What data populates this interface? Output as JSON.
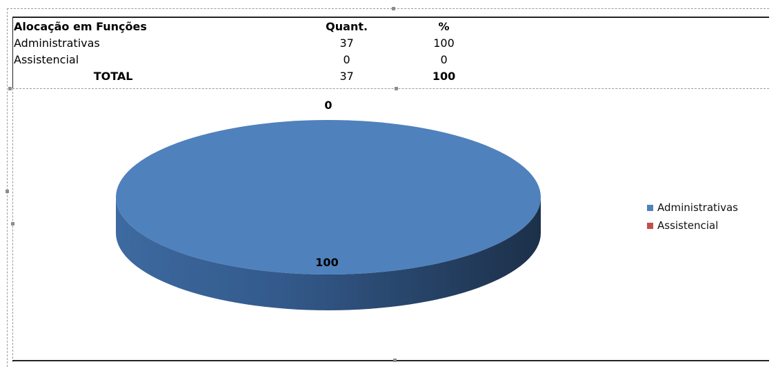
{
  "table": {
    "headers": [
      "Alocação em Funções",
      "Quant.",
      "%"
    ],
    "rows": [
      {
        "label": "Administrativas",
        "quant": "37",
        "pct": "100"
      },
      {
        "label": "Assistencial",
        "quant": "0",
        "pct": "0"
      }
    ],
    "total": {
      "label": "TOTAL",
      "quant": "37",
      "pct": "100"
    }
  },
  "chart_data": {
    "type": "pie",
    "style": "3d",
    "categories": [
      "Administrativas",
      "Assistencial"
    ],
    "values": [
      100,
      0
    ],
    "data_labels": [
      "100",
      "0"
    ],
    "colors": [
      "#4f81bd",
      "#c0504d"
    ],
    "legend": {
      "placement": "right",
      "entries": [
        "Administrativas",
        "Assistencial"
      ]
    }
  }
}
